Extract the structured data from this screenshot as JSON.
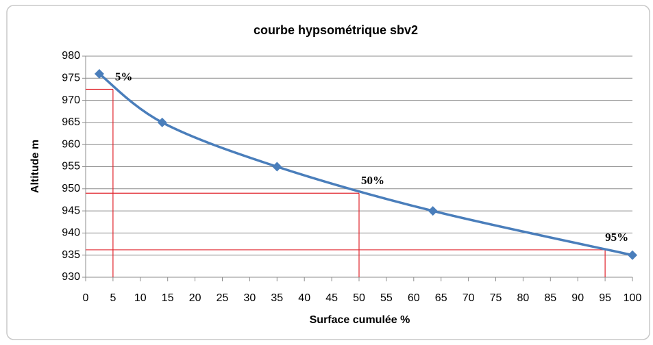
{
  "chart_data": {
    "type": "line",
    "title": "courbe hypsométrique sbv2",
    "xlabel": "Surface cumulée %",
    "ylabel": "Altitude m",
    "x": [
      2.5,
      14,
      35,
      63.5,
      100
    ],
    "values": [
      976,
      965,
      955,
      945,
      935
    ],
    "color": "#4a7ebb",
    "xlim": [
      0,
      100
    ],
    "xticks": [
      0,
      5,
      10,
      15,
      20,
      25,
      30,
      35,
      40,
      45,
      50,
      55,
      60,
      65,
      70,
      75,
      80,
      85,
      90,
      95,
      100
    ],
    "ylim": [
      930,
      980
    ],
    "yticks": [
      930,
      935,
      940,
      945,
      950,
      955,
      960,
      965,
      970,
      975,
      980
    ],
    "grid": true,
    "reference_color": "#e0242c",
    "reference_lines": [
      {
        "x": 5,
        "y": 972.5,
        "label": "5%"
      },
      {
        "x": 50,
        "y": 949,
        "label": "50%"
      },
      {
        "x": 95,
        "y": 936.2,
        "label": "95%"
      }
    ]
  }
}
